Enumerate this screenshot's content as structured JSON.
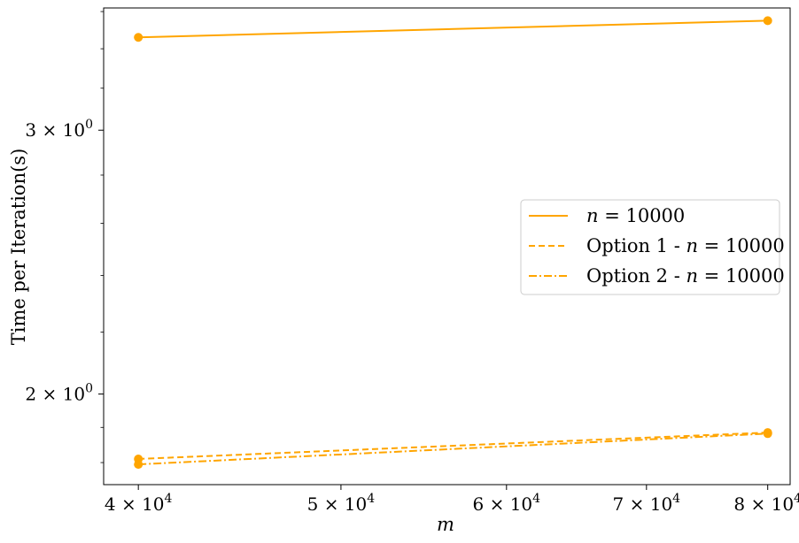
{
  "chart_data": {
    "type": "line",
    "xscale": "log",
    "yscale": "log",
    "xlabel": "m",
    "ylabel": "Time per Iteration(s)",
    "xlim": [
      38500,
      82000
    ],
    "ylim": [
      1.74,
      3.62
    ],
    "grid": false,
    "legend_position": "center-right",
    "x_ticks": [
      {
        "value": 40000,
        "mant": "4",
        "exp": "4"
      },
      {
        "value": 50000,
        "mant": "5",
        "exp": "4"
      },
      {
        "value": 60000,
        "mant": "6",
        "exp": "4"
      },
      {
        "value": 70000,
        "mant": "7",
        "exp": "4"
      },
      {
        "value": 80000,
        "mant": "8",
        "exp": "4"
      }
    ],
    "y_ticks": [
      {
        "value": 2,
        "mant": "2",
        "exp": "0"
      },
      {
        "value": 3,
        "mant": "3",
        "exp": "0"
      }
    ],
    "series": [
      {
        "name_math": "n",
        "name_rest": " = 10000",
        "name_prefix": "",
        "dash": "solid",
        "color": "#ffa500",
        "x": [
          40000,
          80000
        ],
        "y": [
          3.46,
          3.55
        ]
      },
      {
        "name_math": "n",
        "name_rest": " = 10000",
        "name_prefix": "Option 1 - ",
        "dash": "dashed",
        "color": "#ffa500",
        "x": [
          40000,
          80000
        ],
        "y": [
          1.81,
          1.885
        ]
      },
      {
        "name_math": "n",
        "name_rest": " = 10000",
        "name_prefix": "Option 2 - ",
        "dash": "dashdot",
        "color": "#ffa500",
        "x": [
          40000,
          80000
        ],
        "y": [
          1.795,
          1.882
        ]
      }
    ]
  }
}
